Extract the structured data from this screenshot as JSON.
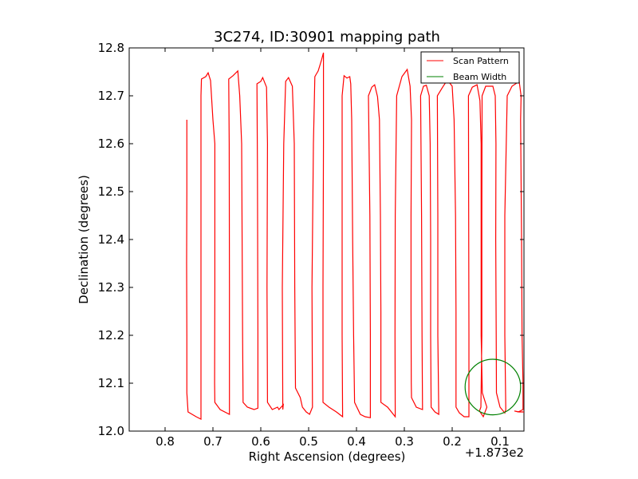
{
  "chart_data": {
    "type": "line",
    "title": "3C274, ID:30901 mapping path",
    "xlabel": "Right Ascension (degrees)",
    "ylabel": "Declination (degrees)",
    "x_offset_label": "+1.873e2",
    "xlim": [
      0.875,
      0.05
    ],
    "ylim": [
      12.0,
      12.8
    ],
    "xticks": [
      0.8,
      0.7,
      0.6,
      0.5,
      0.4,
      0.3,
      0.2,
      0.1
    ],
    "xtick_labels": [
      "0.8",
      "0.7",
      "0.6",
      "0.5",
      "0.4",
      "0.3",
      "0.2",
      "0.1"
    ],
    "yticks": [
      12.0,
      12.1,
      12.2,
      12.3,
      12.4,
      12.5,
      12.6,
      12.7,
      12.8
    ],
    "ytick_labels": [
      "12.0",
      "12.1",
      "12.2",
      "12.3",
      "12.4",
      "12.5",
      "12.6",
      "12.7",
      "12.8"
    ],
    "grid": false,
    "legend_position": "top-right",
    "legend": [
      {
        "label": "Scan Pattern",
        "color": "#ff0000"
      },
      {
        "label": "Beam Width",
        "color": "#008000"
      }
    ],
    "series": [
      {
        "name": "Scan Pattern",
        "color": "#ff0000",
        "points": [
          [
            0.7545,
            12.65
          ],
          [
            0.7545,
            12.5
          ],
          [
            0.755,
            12.35
          ],
          [
            0.7545,
            12.2
          ],
          [
            0.7545,
            12.08
          ],
          [
            0.752,
            12.04
          ],
          [
            0.735,
            12.03
          ],
          [
            0.725,
            12.025
          ],
          [
            0.725,
            12.1
          ],
          [
            0.725,
            12.4
          ],
          [
            0.725,
            12.7
          ],
          [
            0.724,
            12.735
          ],
          [
            0.715,
            12.74
          ],
          [
            0.71,
            12.748
          ],
          [
            0.705,
            12.732
          ],
          [
            0.7,
            12.65
          ],
          [
            0.696,
            12.6
          ],
          [
            0.696,
            12.3
          ],
          [
            0.6965,
            12.1
          ],
          [
            0.696,
            12.06
          ],
          [
            0.685,
            12.045
          ],
          [
            0.6655,
            12.035
          ],
          [
            0.6655,
            12.3
          ],
          [
            0.666,
            12.6
          ],
          [
            0.667,
            12.735
          ],
          [
            0.658,
            12.742
          ],
          [
            0.648,
            12.752
          ],
          [
            0.644,
            12.7
          ],
          [
            0.64,
            12.6
          ],
          [
            0.639,
            12.4
          ],
          [
            0.638,
            12.2
          ],
          [
            0.637,
            12.06
          ],
          [
            0.628,
            12.05
          ],
          [
            0.614,
            12.045
          ],
          [
            0.606,
            12.048
          ],
          [
            0.606,
            12.2
          ],
          [
            0.607,
            12.55
          ],
          [
            0.608,
            12.725
          ],
          [
            0.6,
            12.73
          ],
          [
            0.596,
            12.738
          ],
          [
            0.588,
            12.718
          ],
          [
            0.586,
            12.6
          ],
          [
            0.587,
            12.3
          ],
          [
            0.586,
            12.06
          ],
          [
            0.576,
            12.045
          ],
          [
            0.565,
            12.05
          ],
          [
            0.562,
            12.045
          ],
          [
            0.553,
            12.055
          ],
          [
            0.554,
            12.045
          ],
          [
            0.555,
            12.3
          ],
          [
            0.552,
            12.6
          ],
          [
            0.548,
            12.73
          ],
          [
            0.542,
            12.738
          ],
          [
            0.534,
            12.72
          ],
          [
            0.53,
            12.6
          ],
          [
            0.529,
            12.3
          ],
          [
            0.5275,
            12.09
          ],
          [
            0.5175,
            12.07
          ],
          [
            0.513,
            12.05
          ],
          [
            0.505,
            12.04
          ],
          [
            0.498,
            12.035
          ],
          [
            0.492,
            12.05
          ],
          [
            0.493,
            12.3
          ],
          [
            0.49,
            12.6
          ],
          [
            0.487,
            12.74
          ],
          [
            0.48,
            12.752
          ],
          [
            0.473,
            12.775
          ],
          [
            0.469,
            12.79
          ],
          [
            0.469,
            12.6
          ],
          [
            0.47,
            12.3
          ],
          [
            0.47,
            12.06
          ],
          [
            0.4575,
            12.05
          ],
          [
            0.442,
            12.04
          ],
          [
            0.429,
            12.03
          ],
          [
            0.43,
            12.2
          ],
          [
            0.43,
            12.45
          ],
          [
            0.43,
            12.7
          ],
          [
            0.426,
            12.742
          ],
          [
            0.42,
            12.737
          ],
          [
            0.414,
            12.74
          ],
          [
            0.412,
            12.725
          ],
          [
            0.41,
            12.65
          ],
          [
            0.408,
            12.4
          ],
          [
            0.406,
            12.2
          ],
          [
            0.404,
            12.06
          ],
          [
            0.392,
            12.035
          ],
          [
            0.382,
            12.03
          ],
          [
            0.371,
            12.028
          ],
          [
            0.371,
            12.2
          ],
          [
            0.372,
            12.45
          ],
          [
            0.375,
            12.7
          ],
          [
            0.368,
            12.718
          ],
          [
            0.362,
            12.723
          ],
          [
            0.356,
            12.698
          ],
          [
            0.352,
            12.65
          ],
          [
            0.35,
            12.45
          ],
          [
            0.349,
            12.25
          ],
          [
            0.349,
            12.06
          ],
          [
            0.335,
            12.05
          ],
          [
            0.319,
            12.03
          ],
          [
            0.3195,
            12.2
          ],
          [
            0.319,
            12.45
          ],
          [
            0.316,
            12.7
          ],
          [
            0.305,
            12.74
          ],
          [
            0.294,
            12.755
          ],
          [
            0.288,
            12.72
          ],
          [
            0.285,
            12.65
          ],
          [
            0.286,
            12.45
          ],
          [
            0.286,
            12.25
          ],
          [
            0.2855,
            12.1
          ],
          [
            0.285,
            12.07
          ],
          [
            0.275,
            12.05
          ],
          [
            0.262,
            12.045
          ],
          [
            0.263,
            12.2
          ],
          [
            0.264,
            12.45
          ],
          [
            0.266,
            12.7
          ],
          [
            0.26,
            12.72
          ],
          [
            0.254,
            12.722
          ],
          [
            0.248,
            12.7
          ],
          [
            0.246,
            12.6
          ],
          [
            0.245,
            12.4
          ],
          [
            0.245,
            12.2
          ],
          [
            0.244,
            12.05
          ],
          [
            0.236,
            12.04
          ],
          [
            0.228,
            12.035
          ],
          [
            0.23,
            12.2
          ],
          [
            0.23,
            12.45
          ],
          [
            0.231,
            12.7
          ],
          [
            0.22,
            12.718
          ],
          [
            0.21,
            12.733
          ],
          [
            0.2,
            12.72
          ],
          [
            0.196,
            12.65
          ],
          [
            0.193,
            12.45
          ],
          [
            0.192,
            12.25
          ],
          [
            0.192,
            12.05
          ],
          [
            0.185,
            12.038
          ],
          [
            0.175,
            12.03
          ],
          [
            0.165,
            12.03
          ],
          [
            0.165,
            12.2
          ],
          [
            0.1655,
            12.45
          ],
          [
            0.166,
            12.7
          ],
          [
            0.158,
            12.718
          ],
          [
            0.148,
            12.723
          ],
          [
            0.142,
            12.69
          ],
          [
            0.1395,
            12.6
          ],
          [
            0.1395,
            12.4
          ],
          [
            0.1395,
            12.2
          ],
          [
            0.137,
            12.08
          ],
          [
            0.1275,
            12.05
          ],
          [
            0.135,
            12.03
          ],
          [
            0.143,
            12.042
          ],
          [
            0.14,
            12.05
          ],
          [
            0.138,
            12.2
          ],
          [
            0.138,
            12.45
          ],
          [
            0.1375,
            12.7
          ],
          [
            0.13,
            12.72
          ],
          [
            0.115,
            12.72
          ],
          [
            0.11,
            12.7
          ],
          [
            0.1085,
            12.6
          ],
          [
            0.109,
            12.4
          ],
          [
            0.108,
            12.2
          ],
          [
            0.1075,
            12.08
          ],
          [
            0.1,
            12.05
          ],
          [
            0.09,
            12.038
          ],
          [
            0.088,
            12.045
          ],
          [
            0.09,
            12.2
          ],
          [
            0.09,
            12.45
          ],
          [
            0.085,
            12.7
          ],
          [
            0.075,
            12.72
          ],
          [
            0.06,
            12.73
          ],
          [
            0.056,
            12.7
          ],
          [
            0.057,
            12.65
          ],
          [
            0.055,
            12.4
          ],
          [
            0.054,
            12.2
          ],
          [
            0.052,
            12.1
          ],
          [
            0.052,
            12.045
          ],
          [
            0.062,
            12.04
          ],
          [
            0.07,
            12.042
          ],
          [
            0.06,
            12.04
          ],
          [
            0.05,
            12.04
          ]
        ]
      },
      {
        "name": "Beam Width",
        "color": "#008000",
        "shape": "circle",
        "center": [
          0.115,
          12.092
        ],
        "radius_x": 0.058
      }
    ]
  }
}
